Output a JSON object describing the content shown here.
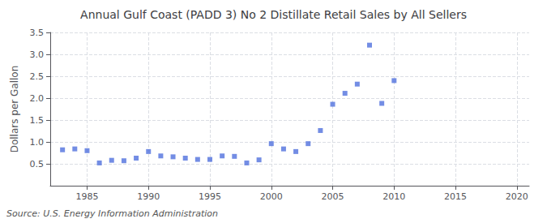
{
  "chart_data": {
    "type": "scatter",
    "title": "Annual Gulf Coast (PADD 3) No 2 Distillate Retail Sales by All Sellers",
    "ylabel": "Dollars per Gallon",
    "annotation": "Source: U.S. Energy Information Administration",
    "x": [
      1983,
      1984,
      1985,
      1986,
      1987,
      1988,
      1989,
      1990,
      1991,
      1992,
      1993,
      1994,
      1995,
      1996,
      1997,
      1998,
      1999,
      2000,
      2001,
      2002,
      2003,
      2004,
      2005,
      2006,
      2007,
      2008,
      2009,
      2010
    ],
    "values": [
      0.82,
      0.84,
      0.8,
      0.52,
      0.58,
      0.57,
      0.63,
      0.78,
      0.68,
      0.66,
      0.63,
      0.6,
      0.6,
      0.68,
      0.67,
      0.52,
      0.59,
      0.96,
      0.84,
      0.78,
      0.96,
      1.26,
      1.86,
      2.11,
      2.32,
      3.21,
      1.88,
      2.4
    ],
    "xlim": [
      1982,
      2021
    ],
    "xticks": [
      1985,
      1990,
      1995,
      2000,
      2005,
      2010,
      2015,
      2020
    ],
    "ylim": [
      0.0,
      3.5
    ],
    "yticks": [
      0.5,
      {
        "value": 1.0,
        "label": "1.0"
      },
      1.5,
      {
        "value": 2.0,
        "label": "2.0"
      },
      2.5,
      {
        "value": 3.0,
        "label": "3.0"
      },
      3.5
    ],
    "marker": "square",
    "grid": true
  }
}
